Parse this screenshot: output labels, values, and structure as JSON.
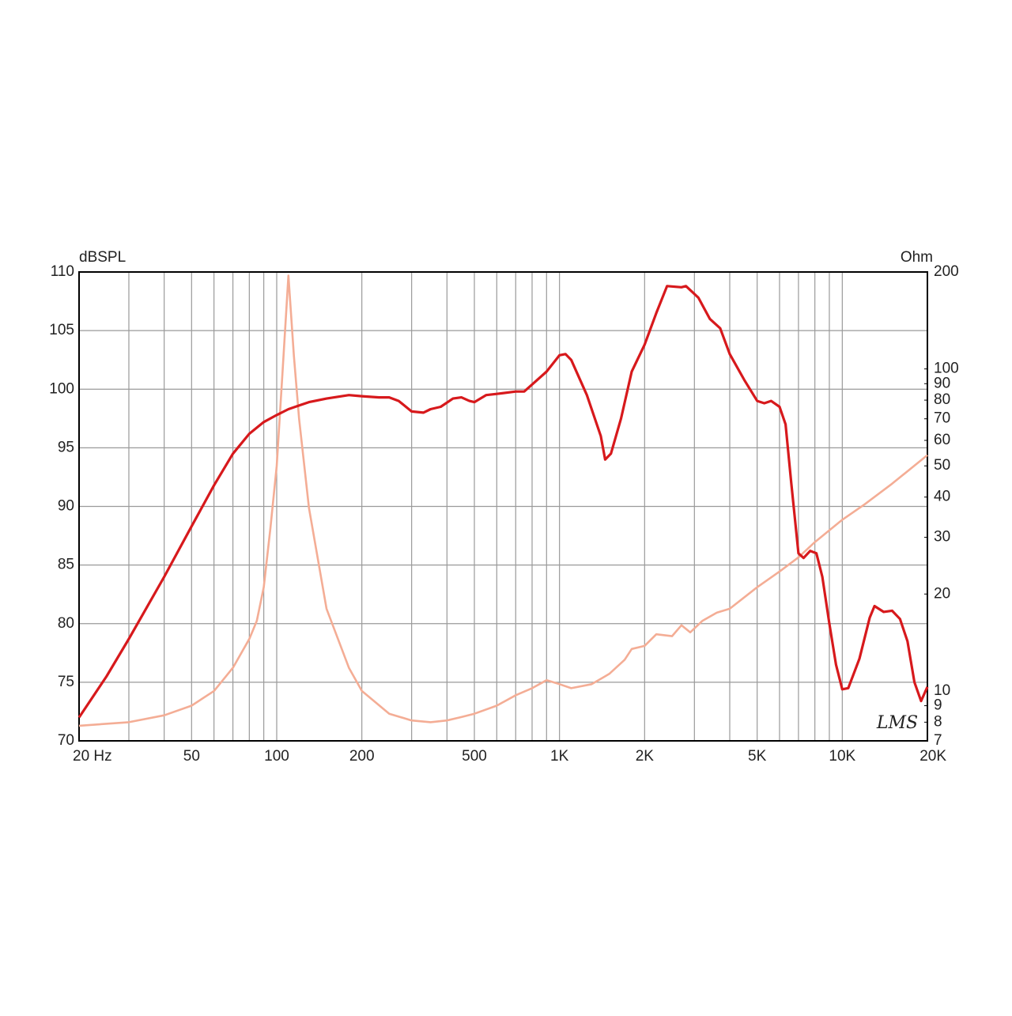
{
  "chart_data": {
    "type": "line",
    "ylabel": "dBSPL",
    "y2label": "Ohm",
    "annotation": "LMS",
    "xscale": "log",
    "y2scale": "log",
    "grid": true,
    "xlim": [
      20,
      20000
    ],
    "xticks": [
      {
        "value": 20,
        "label": "20  Hz"
      },
      50,
      100,
      200,
      500,
      {
        "value": 1000,
        "label": "1K"
      },
      {
        "value": 2000,
        "label": "2K"
      },
      {
        "value": 5000,
        "label": "5K"
      },
      {
        "value": 10000,
        "label": "10K"
      },
      {
        "value": 20000,
        "label": "20K"
      }
    ],
    "xminorticks": [
      30,
      40,
      60,
      70,
      80,
      90,
      300,
      400,
      600,
      700,
      800,
      900,
      3000,
      4000,
      6000,
      7000,
      8000,
      9000
    ],
    "ylim": [
      70,
      110
    ],
    "yticks": [
      70,
      75,
      80,
      85,
      90,
      95,
      100,
      105,
      110
    ],
    "y2lim": [
      7,
      200
    ],
    "y2ticks": [
      7,
      8,
      9,
      10,
      20,
      30,
      40,
      50,
      60,
      70,
      80,
      90,
      100,
      200
    ],
    "series": [
      {
        "name": "dBSPL",
        "color": "#d7191c",
        "x": [
          20,
          25,
          30,
          40,
          50,
          60,
          70,
          80,
          90,
          100,
          110,
          130,
          150,
          180,
          200,
          230,
          250,
          270,
          300,
          330,
          350,
          380,
          420,
          450,
          480,
          500,
          550,
          600,
          700,
          750,
          800,
          900,
          1000,
          1050,
          1100,
          1250,
          1400,
          1450,
          1520,
          1650,
          1800,
          2000,
          2200,
          2400,
          2700,
          2800,
          3100,
          3400,
          3700,
          4000,
          4500,
          5000,
          5300,
          5600,
          6000,
          6300,
          6600,
          7000,
          7300,
          7700,
          8100,
          8500,
          9000,
          9500,
          10000,
          10500,
          11500,
          12500,
          13000,
          14000,
          15000,
          16000,
          17000,
          18000,
          19000,
          20000
        ],
        "values": [
          72,
          75.5,
          78.7,
          84,
          88.3,
          91.8,
          94.5,
          96.2,
          97.2,
          97.8,
          98.3,
          98.9,
          99.2,
          99.5,
          99.4,
          99.3,
          99.3,
          99.0,
          98.1,
          98.0,
          98.3,
          98.5,
          99.2,
          99.3,
          99.0,
          98.9,
          99.5,
          99.6,
          99.8,
          99.8,
          100.4,
          101.5,
          102.9,
          103.0,
          102.5,
          99.5,
          96,
          94.0,
          94.5,
          97.5,
          101.5,
          103.8,
          106.5,
          108.8,
          108.7,
          108.8,
          107.8,
          106,
          105.2,
          103,
          100.8,
          99,
          98.8,
          99,
          98.5,
          97,
          92,
          86,
          85.6,
          86.2,
          86,
          84,
          80,
          76.5,
          74.4,
          74.5,
          77,
          80.5,
          81.5,
          81.0,
          81.1,
          80.4,
          78.5,
          75,
          73.4,
          74.6
        ]
      },
      {
        "name": "Ohm",
        "color": "#f4ad95",
        "axis": "y2",
        "x": [
          20,
          30,
          40,
          50,
          60,
          70,
          80,
          85,
          90,
          95,
          100,
          105,
          110,
          115,
          120,
          130,
          150,
          180,
          200,
          250,
          300,
          350,
          400,
          450,
          500,
          600,
          700,
          800,
          900,
          1000,
          1100,
          1300,
          1500,
          1700,
          1800,
          2000,
          2200,
          2500,
          2700,
          2900,
          3200,
          3600,
          4000,
          5000,
          6000,
          7000,
          8000,
          10000,
          12000,
          15000,
          20000
        ],
        "values": [
          7.8,
          8.0,
          8.4,
          9.0,
          10.0,
          11.8,
          14.5,
          16.5,
          21,
          32,
          50,
          100,
          195,
          110,
          70,
          37,
          18,
          11.8,
          10,
          8.5,
          8.1,
          8.0,
          8.1,
          8.3,
          8.5,
          9.0,
          9.7,
          10.2,
          10.8,
          10.5,
          10.2,
          10.5,
          11.3,
          12.5,
          13.5,
          13.8,
          15,
          14.8,
          16,
          15.2,
          16.5,
          17.5,
          18.0,
          21,
          23.5,
          26,
          29,
          34,
          38,
          44,
          54
        ]
      }
    ]
  }
}
